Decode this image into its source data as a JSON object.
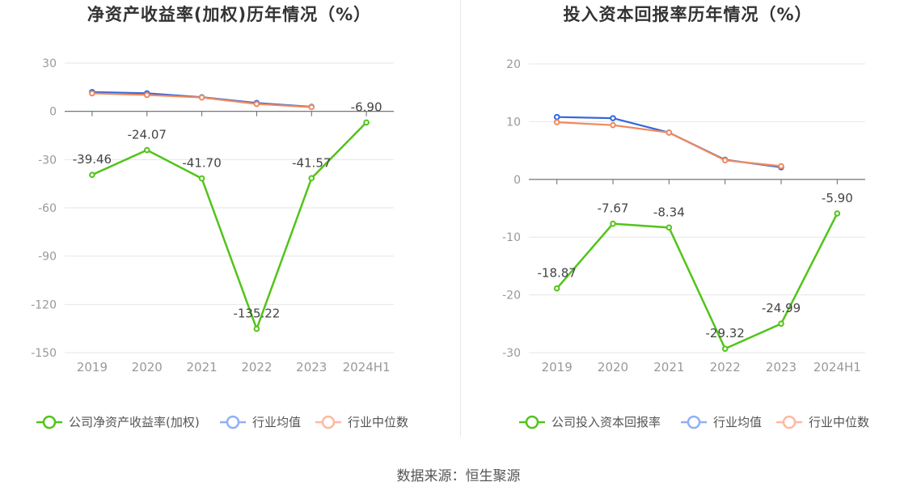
{
  "source": "数据来源：恒生聚源",
  "colors": {
    "company": "#52c41a",
    "avg": "#3366dd",
    "median": "#f08a5d",
    "avg_legend": "#8fb0f5",
    "median_legend": "#ffb8a0",
    "grid": "#e6e6e6",
    "axis": "#666666",
    "tick": "#999999"
  },
  "chart_data": [
    {
      "type": "line",
      "title": "净资产收益率(加权)历年情况（%）",
      "categories": [
        "2019",
        "2020",
        "2021",
        "2022",
        "2023",
        "2024H1"
      ],
      "ylim": [
        -150,
        30
      ],
      "yticks": [
        30,
        0,
        -30,
        -60,
        -90,
        -120,
        -150
      ],
      "grid": true,
      "legend_position": "bottom",
      "series": [
        {
          "name": "公司净资产收益率(加权)",
          "key": "company",
          "values": [
            -39.46,
            -24.07,
            -41.7,
            -135.22,
            -41.57,
            -6.9
          ],
          "labels": [
            "-39.46",
            "-24.07",
            "-41.70",
            "-135.22",
            "-41.57",
            "-6.90"
          ]
        },
        {
          "name": "行业均值",
          "key": "avg",
          "values": [
            12.0,
            11.2,
            8.8,
            5.2,
            2.8,
            null
          ]
        },
        {
          "name": "行业中位数",
          "key": "median",
          "values": [
            11.2,
            10.2,
            8.6,
            4.6,
            2.6,
            null
          ]
        }
      ]
    },
    {
      "type": "line",
      "title": "投入资本回报率历年情况（%）",
      "categories": [
        "2019",
        "2020",
        "2021",
        "2022",
        "2023",
        "2024H1"
      ],
      "ylim": [
        -30,
        20
      ],
      "yticks": [
        20,
        10,
        0,
        -10,
        -20,
        -30
      ],
      "grid": true,
      "legend_position": "bottom",
      "series": [
        {
          "name": "公司投入资本回报率",
          "key": "company",
          "values": [
            -18.87,
            -7.67,
            -8.34,
            -29.32,
            -24.99,
            -5.9
          ],
          "labels": [
            "-18.87",
            "-7.67",
            "-8.34",
            "-29.32",
            "-24.99",
            "-5.90"
          ]
        },
        {
          "name": "行业均值",
          "key": "avg",
          "values": [
            10.8,
            10.6,
            8.1,
            3.4,
            2.1,
            null
          ]
        },
        {
          "name": "行业中位数",
          "key": "median",
          "values": [
            9.9,
            9.4,
            8.1,
            3.3,
            2.3,
            null
          ]
        }
      ]
    }
  ]
}
